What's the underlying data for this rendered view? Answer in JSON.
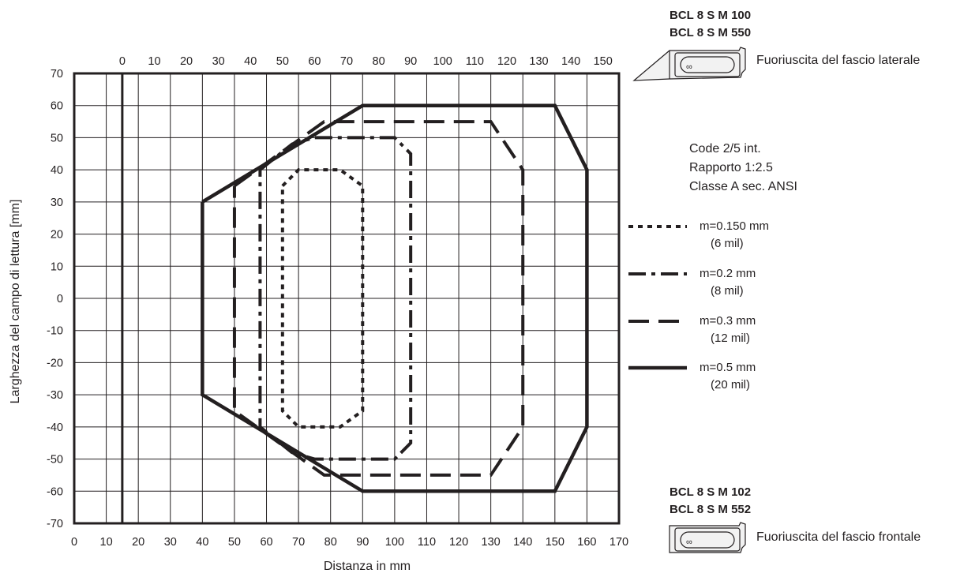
{
  "chart_data": {
    "type": "line",
    "xlabel": "Distanza in mm",
    "ylabel": "Larghezza del campo di lettura [mm]",
    "xlim": [
      0,
      170
    ],
    "ylim": [
      -70,
      70
    ],
    "x_ticks": [
      0,
      10,
      20,
      30,
      40,
      50,
      60,
      70,
      80,
      90,
      100,
      110,
      120,
      130,
      140,
      150,
      160,
      170
    ],
    "x_top_ticks": [
      "0",
      "10",
      "20",
      "30",
      "40",
      "50",
      "60",
      "70",
      "80",
      "90",
      "100",
      "110",
      "120",
      "130",
      "140",
      "150"
    ],
    "top_axis_zero_at_bottom_x": 15,
    "y_ticks": [
      70,
      60,
      50,
      40,
      30,
      20,
      10,
      0,
      -10,
      -20,
      -30,
      -40,
      -50,
      -60,
      -70
    ],
    "grid": true,
    "series": [
      {
        "name": "m=0.150 mm",
        "sub": "(6 mil)",
        "style": "dotted",
        "points": [
          [
            65,
            35
          ],
          [
            70,
            40
          ],
          [
            83,
            40
          ],
          [
            90,
            35
          ],
          [
            90,
            -35
          ],
          [
            83,
            -40
          ],
          [
            70,
            -40
          ],
          [
            65,
            -35
          ],
          [
            65,
            35
          ]
        ]
      },
      {
        "name": "m=0.2 mm",
        "sub": "(8 mil)",
        "style": "dashdot",
        "points": [
          [
            58,
            40
          ],
          [
            68,
            48
          ],
          [
            75,
            50
          ],
          [
            100,
            50
          ],
          [
            105,
            45
          ],
          [
            105,
            -45
          ],
          [
            100,
            -50
          ],
          [
            75,
            -50
          ],
          [
            68,
            -48
          ],
          [
            58,
            -40
          ],
          [
            58,
            40
          ]
        ]
      },
      {
        "name": "m=0.3 mm",
        "sub": "(12 mil)",
        "style": "dashed",
        "points": [
          [
            50,
            35
          ],
          [
            78,
            55
          ],
          [
            130,
            55
          ],
          [
            140,
            40
          ],
          [
            140,
            -40
          ],
          [
            130,
            -55
          ],
          [
            78,
            -55
          ],
          [
            50,
            -35
          ],
          [
            50,
            35
          ]
        ]
      },
      {
        "name": "m=0.5 mm",
        "sub": "(20 mil)",
        "style": "solid",
        "points": [
          [
            40,
            30
          ],
          [
            90,
            60
          ],
          [
            150,
            60
          ],
          [
            160,
            40
          ],
          [
            160,
            -40
          ],
          [
            150,
            -60
          ],
          [
            90,
            -60
          ],
          [
            40,
            -30
          ],
          [
            40,
            30
          ]
        ]
      }
    ],
    "notes": [
      "Code 2/5 int.",
      "Rapporto 1:2.5",
      "Classe A sec. ANSI"
    ],
    "devices": {
      "lateral": {
        "models": [
          "BCL 8 S M 100",
          "BCL 8 S M 550"
        ],
        "caption": "Fuoriuscita del fascio laterale"
      },
      "frontal": {
        "models": [
          "BCL 8 S M 102",
          "BCL 8 S M 552"
        ],
        "caption": "Fuoriuscita del fascio frontale"
      }
    }
  }
}
